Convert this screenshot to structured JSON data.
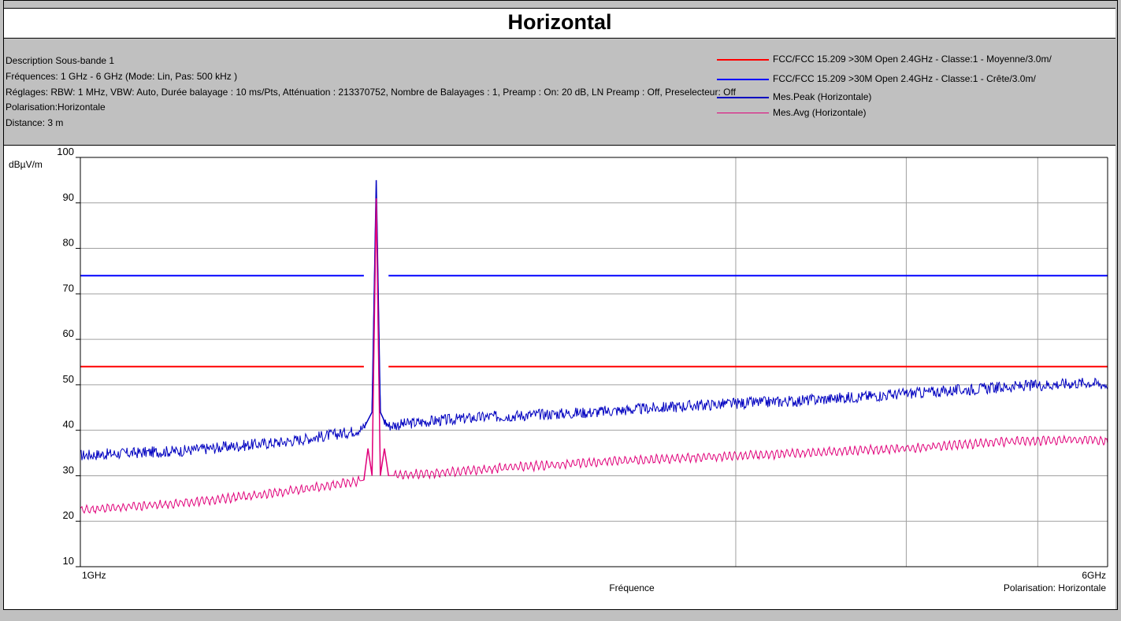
{
  "title": "Horizontal",
  "info": {
    "description": "Description Sous-bande 1",
    "frequencies": "Fréquences: 1 GHz - 6 GHz (Mode: Lin, Pas: 500 kHz )",
    "settings": "Réglages: RBW: 1 MHz, VBW: Auto, Durée balayage : 10 ms/Pts, Atténuation : 213370752, Nombre de Balayages : 1, Preamp : On: 20 dB, LN Preamp : Off, Preselecteur: Off",
    "polarisation": "Polarisation:Horizontale",
    "distance": "Distance: 3 m"
  },
  "legend": [
    {
      "label": "FCC/FCC 15.209 >30M Open 2.4GHz - Classe:1 - Moyenne/3.0m/",
      "color": "#ff0000"
    },
    {
      "label": "FCC/FCC 15.209 >30M Open 2.4GHz - Classe:1 - Crête/3.0m/",
      "color": "#0000ff"
    },
    {
      "label": "Mes.Peak (Horizontale)",
      "color": "#0000c0"
    },
    {
      "label": "Mes.Avg (Horizontale)",
      "color": "#e0007a"
    }
  ],
  "chart_data": {
    "type": "line",
    "ylabel": "dBµV/m",
    "xlabel": "Fréquence",
    "x_unit": "GHz",
    "xlim": [
      1,
      6
    ],
    "ylim": [
      10,
      100
    ],
    "yticks": [
      10,
      20,
      30,
      40,
      50,
      60,
      70,
      80,
      90,
      100
    ],
    "xtick_labels": {
      "start": "1GHz",
      "end": "6GHz"
    },
    "polarisation_label": "Polarisation: Horizontale",
    "grid_x": [
      1,
      4.19,
      5.02,
      5.66
    ],
    "grid_y": [
      20,
      30,
      40,
      50,
      60,
      70,
      80,
      90
    ],
    "limit_lines": [
      {
        "name": "FCC/FCC 15.209 >30M Open 2.4GHz - Classe:1 - Moyenne/3.0m/",
        "color": "#ff0000",
        "value": 54,
        "segments": [
          [
            1.0,
            2.38
          ],
          [
            2.5,
            6.0
          ]
        ]
      },
      {
        "name": "FCC/FCC 15.209 >30M Open 2.4GHz - Classe:1 - Crête/3.0m/",
        "color": "#0000ff",
        "value": 74,
        "segments": [
          [
            1.0,
            2.38
          ],
          [
            2.5,
            6.0
          ]
        ]
      }
    ],
    "series": [
      {
        "name": "Mes.Peak (Horizontale)",
        "color": "#0000c0",
        "noise": 0.9,
        "x": [
          1.0,
          1.5,
          2.0,
          2.3,
          2.38,
          2.42,
          2.44,
          2.46,
          2.48,
          2.5,
          2.7,
          3.0,
          3.5,
          4.0,
          4.5,
          5.0,
          5.5,
          5.9,
          6.0
        ],
        "y": [
          34.5,
          35.5,
          37.5,
          39.5,
          40.5,
          44.0,
          95.0,
          44.0,
          42.0,
          41.0,
          42.0,
          43.0,
          44.0,
          45.5,
          46.5,
          48.0,
          49.5,
          50.5,
          50.0
        ]
      },
      {
        "name": "Mes.Avg (Horizontale)",
        "color": "#e0007a",
        "noise": 0.6,
        "x": [
          1.0,
          1.5,
          2.0,
          2.3,
          2.38,
          2.4,
          2.42,
          2.44,
          2.46,
          2.48,
          2.5,
          2.7,
          3.0,
          3.5,
          4.0,
          4.5,
          5.0,
          5.5,
          5.9,
          6.0
        ],
        "y": [
          22.5,
          24.0,
          26.5,
          28.5,
          29.0,
          36.0,
          30.0,
          91.0,
          30.0,
          36.0,
          30.0,
          30.5,
          31.5,
          33.0,
          34.0,
          35.0,
          36.0,
          37.5,
          38.0,
          37.5
        ]
      }
    ]
  }
}
